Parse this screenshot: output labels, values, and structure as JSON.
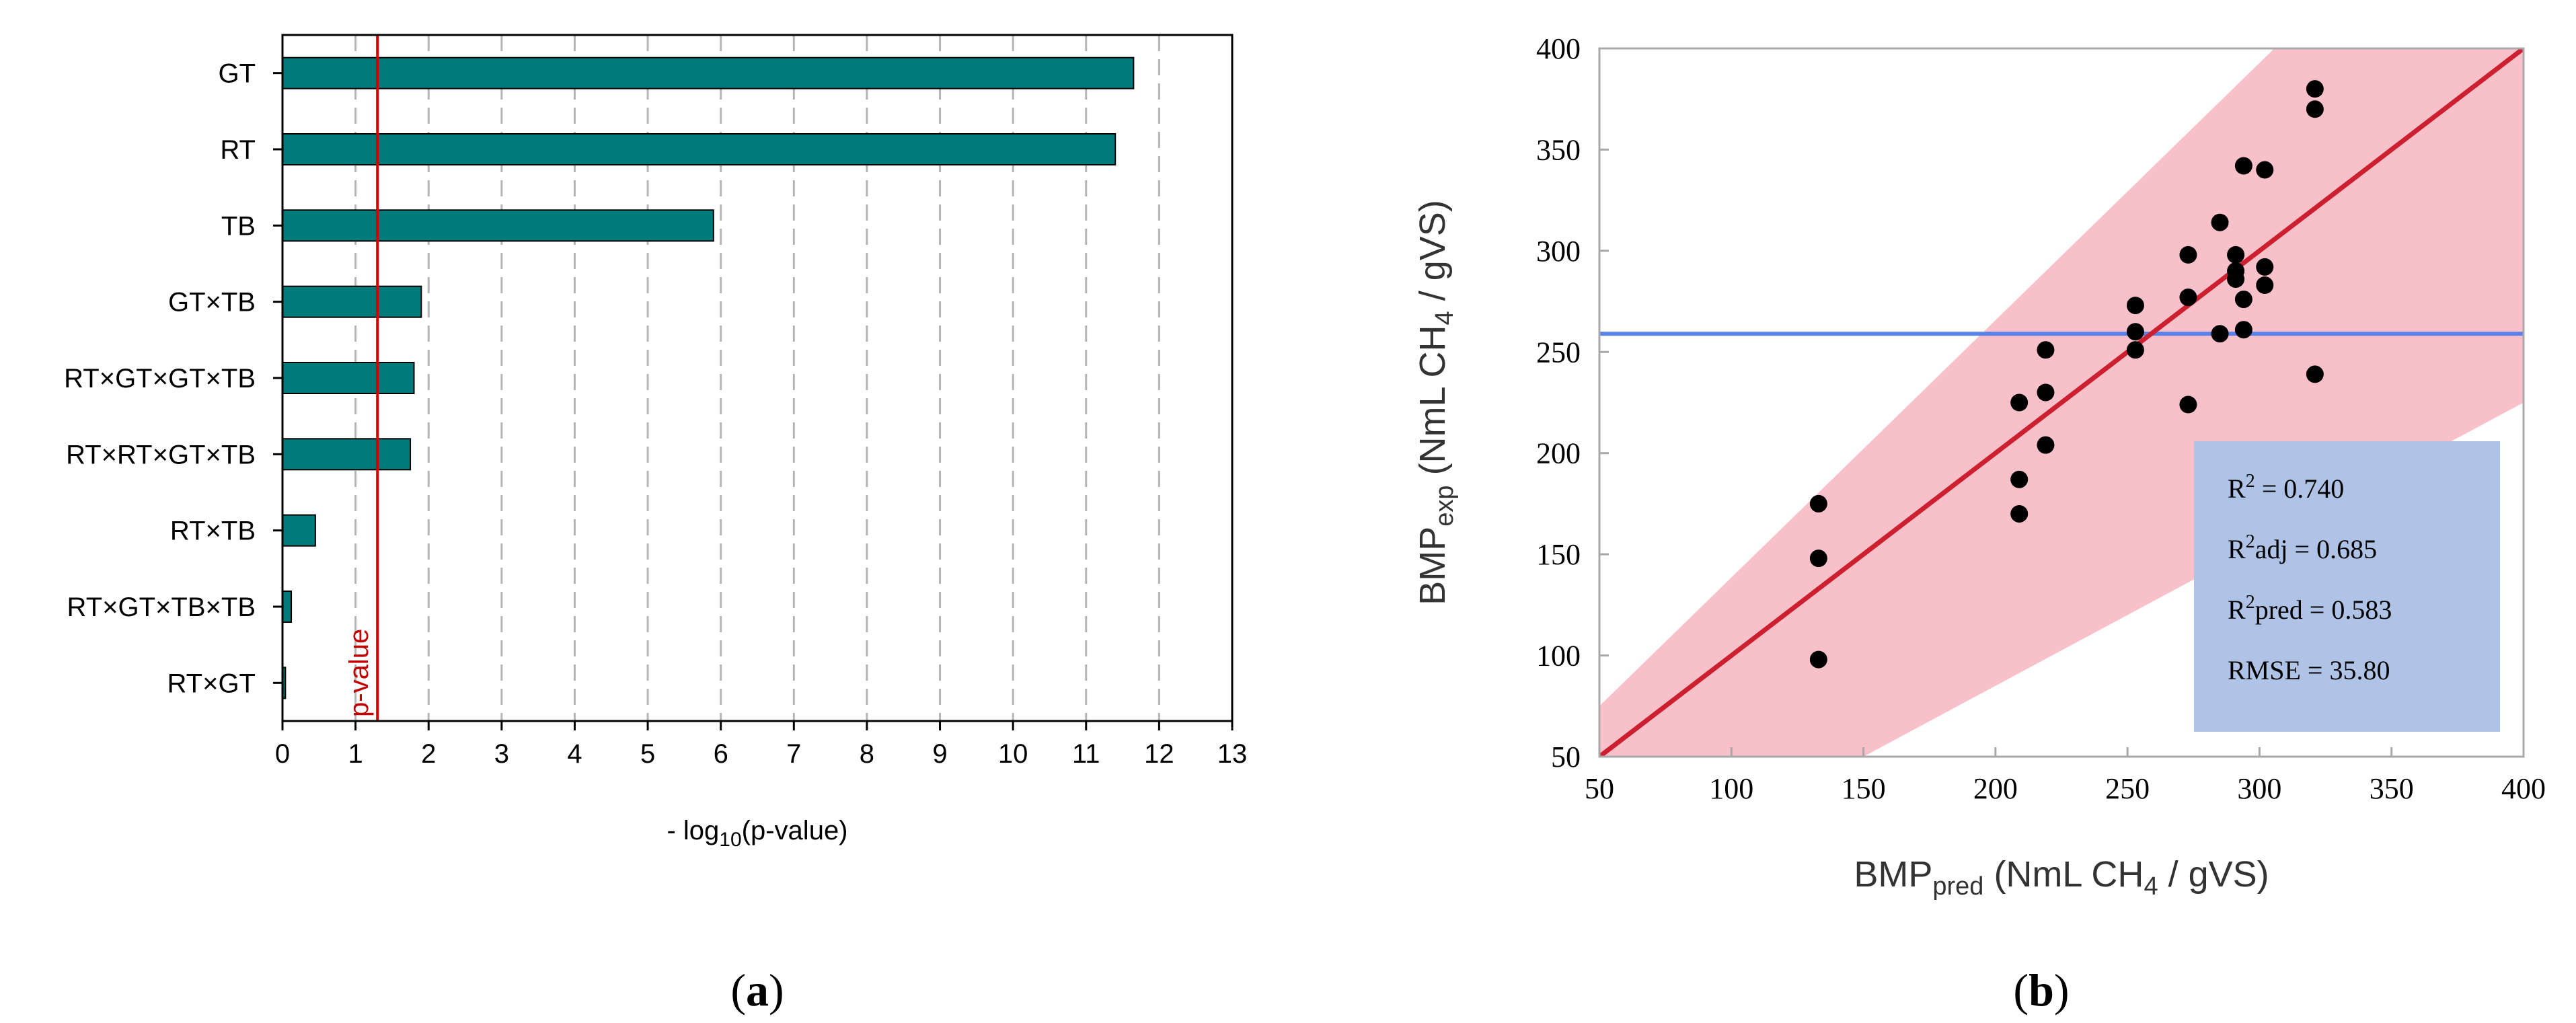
{
  "chart_data": [
    {
      "type": "bar",
      "orientation": "horizontal",
      "panel_label": "a",
      "categories": [
        "GT",
        "RT",
        "TB",
        "GT×TB",
        "RT×GT×GT×TB",
        "RT×RT×GT×TB",
        "RT×TB",
        "RT×GT×TB×TB",
        "RT×GT"
      ],
      "values": [
        11.65,
        11.4,
        5.9,
        1.9,
        1.8,
        1.75,
        0.45,
        0.12,
        0.04
      ],
      "xlabel_prefix": "- log",
      "xlabel_sub": "10",
      "xlabel_suffix": "(p-value)",
      "xlim": [
        0,
        13
      ],
      "xticks": [
        "0",
        "1",
        "2",
        "3",
        "4",
        "5",
        "6",
        "7",
        "8",
        "9",
        "10",
        "11",
        "12",
        "13"
      ],
      "reference_line": {
        "x": 1.3,
        "label": "p-value",
        "color": "#d40000"
      },
      "bar_color": "#007b7b",
      "grid": "vertical dashed"
    },
    {
      "type": "scatter",
      "panel_label": "b",
      "xlabel_main": "BMP",
      "xlabel_sub": "pred",
      "xlabel_rest": " (NmL CH",
      "xlabel_sub2": "4",
      "xlabel_end": " / gVS)",
      "ylabel_main": "BMP",
      "ylabel_sub": "exp",
      "ylabel_rest": " (NmL CH",
      "ylabel_sub2": "4",
      "ylabel_end": " / gVS)",
      "xlim": [
        50,
        400
      ],
      "ylim": [
        50,
        400
      ],
      "xticks": [
        "50",
        "100",
        "150",
        "200",
        "250",
        "300",
        "350",
        "400"
      ],
      "yticks": [
        "50",
        "100",
        "150",
        "200",
        "250",
        "300",
        "350",
        "400"
      ],
      "points": [
        [
          133,
          175
        ],
        [
          133,
          148
        ],
        [
          133,
          98
        ],
        [
          209,
          225
        ],
        [
          209,
          187
        ],
        [
          209,
          170
        ],
        [
          219,
          251
        ],
        [
          219,
          230
        ],
        [
          219,
          204
        ],
        [
          253,
          273
        ],
        [
          253,
          260
        ],
        [
          253,
          251
        ],
        [
          273,
          298
        ],
        [
          273,
          277
        ],
        [
          273,
          224
        ],
        [
          285,
          314
        ],
        [
          285,
          259
        ],
        [
          291,
          298
        ],
        [
          291,
          290
        ],
        [
          291,
          286
        ],
        [
          294,
          342
        ],
        [
          294,
          276
        ],
        [
          294,
          261
        ],
        [
          302,
          340
        ],
        [
          302,
          292
        ],
        [
          302,
          283
        ],
        [
          321,
          380
        ],
        [
          321,
          370
        ],
        [
          321,
          239
        ]
      ],
      "fit_line": {
        "x": [
          50,
          400
        ],
        "y": [
          50,
          400
        ],
        "color": "#cc1f2f"
      },
      "confidence_band": {
        "x": [
          50,
          400
        ],
        "upper": [
          75,
          520
        ],
        "lower": [
          -20,
          225
        ],
        "color": "#f8c0c8"
      },
      "mean_line": {
        "y": 259,
        "color": "#5b82e8"
      },
      "stats_box": {
        "background": "#aec3e6",
        "lines": [
          {
            "prefix": "R",
            "sup": "2",
            "text": " = 0.740"
          },
          {
            "prefix": "R",
            "sup": "2",
            "text": "adj = 0.685"
          },
          {
            "prefix": "R",
            "sup": "2",
            "text": "pred = 0.583"
          },
          {
            "prefix": "",
            "sup": "",
            "text": "RMSE = 35.80"
          }
        ]
      },
      "grid": false
    }
  ]
}
